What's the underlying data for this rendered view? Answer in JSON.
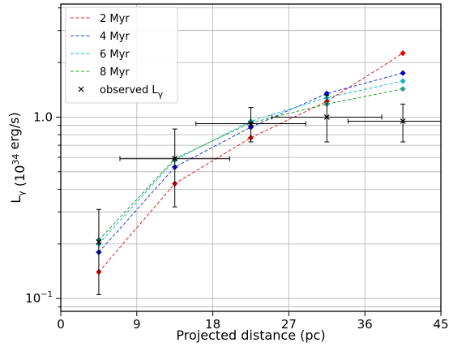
{
  "chart_data": {
    "type": "scatter",
    "xlabel": "Projected distance (pc)",
    "ylabel": "L_γ (10^34 erg/s)",
    "xlim": [
      0,
      45
    ],
    "ylim": [
      0.085,
      4.2
    ],
    "yscale": "log",
    "grid": true,
    "legend_position": "top-left",
    "x_ticks": [
      0,
      9,
      18,
      27,
      36,
      45
    ],
    "x_tick_labels": [
      "0",
      "9",
      "18",
      "27",
      "36",
      "45"
    ],
    "y_major_ticks": [
      0.1,
      1.0
    ],
    "y_major_labels": [
      "10",
      "10"
    ],
    "y_major_exponents": [
      "−1",
      "0"
    ],
    "y_major_formats": [
      "power",
      "decimal"
    ],
    "y_decimal_label": "1.0",
    "series": [
      {
        "name": " 2 Myr",
        "color": "#e41a1c",
        "marker_color": "#e00000",
        "x": [
          4.5,
          13.5,
          22.5,
          31.5,
          40.5
        ],
        "y": [
          0.14,
          0.43,
          0.77,
          1.22,
          2.25
        ]
      },
      {
        "name": "4 Myr",
        "color": "#1f3fd6",
        "marker_color": "#0000cc",
        "x": [
          4.5,
          13.5,
          22.5,
          31.5,
          40.5
        ],
        "y": [
          0.18,
          0.53,
          0.88,
          1.35,
          1.75
        ]
      },
      {
        "name": "6 Myr",
        "color": "#17becf",
        "marker_color": "#17b5c0",
        "x": [
          4.5,
          13.5,
          22.5,
          31.5,
          40.5
        ],
        "y": [
          0.2,
          0.58,
          0.95,
          1.28,
          1.58
        ]
      },
      {
        "name": "8 Myr",
        "color": "#2ca02c",
        "marker_color": "#2ca089",
        "x": [
          4.5,
          13.5,
          22.5,
          31.5,
          40.5
        ],
        "y": [
          0.21,
          0.59,
          0.93,
          1.18,
          1.43
        ]
      }
    ],
    "observed": {
      "name": "observed L_γ",
      "points": [
        {
          "x": 4.5,
          "y": 0.205,
          "xerr": [
            4.5,
            4.5
          ],
          "yerr": [
            0.105,
            0.31
          ]
        },
        {
          "x": 13.5,
          "y": 0.59,
          "xerr": [
            7.0,
            20.0
          ],
          "yerr": [
            0.32,
            0.86
          ]
        },
        {
          "x": 22.5,
          "y": 0.92,
          "xerr": [
            16.0,
            29.0
          ],
          "yerr": [
            0.73,
            1.13
          ]
        },
        {
          "x": 31.5,
          "y": 1.0,
          "xerr": [
            25.0,
            38.0
          ],
          "yerr": [
            0.73,
            1.32
          ]
        },
        {
          "x": 40.5,
          "y": 0.95,
          "xerr": [
            34.0,
            45.0
          ],
          "yerr": [
            0.73,
            1.18
          ]
        }
      ]
    }
  }
}
